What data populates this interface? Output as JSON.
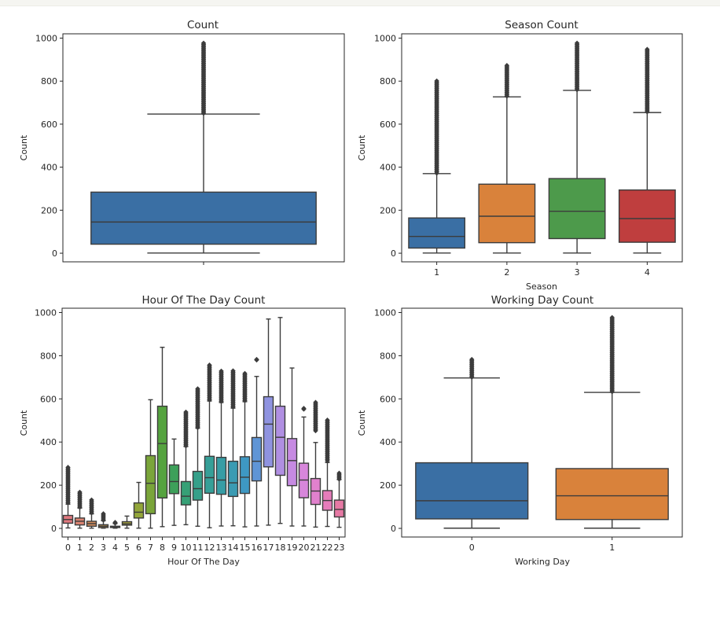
{
  "figure": {
    "background": "#ffffff"
  },
  "chart_data": [
    {
      "type": "boxplot",
      "title": "Count",
      "xlabel": "",
      "ylabel": "Count",
      "ylim": [
        -40,
        1020
      ],
      "yticks": [
        0,
        200,
        400,
        600,
        800,
        1000
      ],
      "categories": [
        ""
      ],
      "boxes": [
        {
          "label": "",
          "lower_whisker": 1,
          "q1": 42,
          "median": 145,
          "q3": 284,
          "upper_whisker": 647,
          "outliers_from": 650,
          "outliers_to": 977,
          "color": "#3a6fa4"
        }
      ]
    },
    {
      "type": "boxplot",
      "title": "Season Count",
      "xlabel": "Season",
      "ylabel": "Count",
      "ylim": [
        -40,
        1020
      ],
      "yticks": [
        0,
        200,
        400,
        600,
        800,
        1000
      ],
      "categories": [
        "1",
        "2",
        "3",
        "4"
      ],
      "boxes": [
        {
          "label": "1",
          "lower_whisker": 1,
          "q1": 24,
          "median": 78,
          "q3": 164,
          "upper_whisker": 370,
          "outliers_from": 372,
          "outliers_to": 801,
          "color": "#3a6fa4"
        },
        {
          "label": "2",
          "lower_whisker": 1,
          "q1": 49,
          "median": 172,
          "q3": 321,
          "upper_whisker": 727,
          "outliers_from": 730,
          "outliers_to": 873,
          "color": "#d9823b"
        },
        {
          "label": "3",
          "lower_whisker": 1,
          "q1": 68,
          "median": 195,
          "q3": 347,
          "upper_whisker": 757,
          "outliers_from": 760,
          "outliers_to": 977,
          "color": "#4d9a4b"
        },
        {
          "label": "4",
          "lower_whisker": 1,
          "q1": 51,
          "median": 161,
          "q3": 294,
          "upper_whisker": 654,
          "outliers_from": 657,
          "outliers_to": 948,
          "color": "#bf3e3e"
        }
      ]
    },
    {
      "type": "boxplot",
      "title": "Hour Of The Day Count",
      "xlabel": "Hour Of The Day",
      "ylabel": "Count",
      "ylim": [
        -40,
        1020
      ],
      "yticks": [
        0,
        200,
        400,
        600,
        800,
        1000
      ],
      "categories": [
        "0",
        "1",
        "2",
        "3",
        "4",
        "5",
        "6",
        "7",
        "8",
        "9",
        "10",
        "11",
        "12",
        "13",
        "14",
        "15",
        "16",
        "17",
        "18",
        "19",
        "20",
        "21",
        "22",
        "23"
      ],
      "boxes": [
        {
          "label": "0",
          "lower_whisker": 2,
          "q1": 24,
          "median": 41,
          "q3": 60,
          "upper_whisker": 112,
          "outliers_from": 118,
          "outliers_to": 283,
          "color": "#e1797f"
        },
        {
          "label": "1",
          "lower_whisker": 1,
          "q1": 16,
          "median": 33,
          "q3": 48,
          "upper_whisker": 94,
          "outliers_from": 98,
          "outliers_to": 168,
          "color": "#dc8472"
        },
        {
          "label": "2",
          "lower_whisker": 1,
          "q1": 10,
          "median": 22,
          "q3": 33,
          "upper_whisker": 67,
          "outliers_from": 72,
          "outliers_to": 132,
          "color": "#d38d5c"
        },
        {
          "label": "3",
          "lower_whisker": 1,
          "q1": 4,
          "median": 10,
          "q3": 17,
          "upper_whisker": 35,
          "outliers_from": 38,
          "outliers_to": 68,
          "color": "#c89a4e"
        },
        {
          "label": "4",
          "lower_whisker": 1,
          "q1": 4,
          "median": 6,
          "q3": 10,
          "upper_whisker": 22,
          "outliers_from": 24,
          "outliers_to": 28,
          "color": "#bba043"
        },
        {
          "label": "5",
          "lower_whisker": 1,
          "q1": 15,
          "median": 21,
          "q3": 31,
          "upper_whisker": 57,
          "outliers_from": null,
          "outliers_to": null,
          "color": "#a7a33b"
        },
        {
          "label": "6",
          "lower_whisker": 1,
          "q1": 48,
          "median": 75,
          "q3": 118,
          "upper_whisker": 213,
          "outliers_from": null,
          "outliers_to": null,
          "color": "#93a63a"
        },
        {
          "label": "7",
          "lower_whisker": 1,
          "q1": 68,
          "median": 209,
          "q3": 337,
          "upper_whisker": 596,
          "outliers_from": null,
          "outliers_to": null,
          "color": "#7aa53a"
        },
        {
          "label": "8",
          "lower_whisker": 8,
          "q1": 141,
          "median": 393,
          "q3": 566,
          "upper_whisker": 839,
          "outliers_from": null,
          "outliers_to": null,
          "color": "#55a33f"
        },
        {
          "label": "9",
          "lower_whisker": 14,
          "q1": 161,
          "median": 217,
          "q3": 294,
          "upper_whisker": 414,
          "outliers_from": null,
          "outliers_to": null,
          "color": "#3da05a"
        },
        {
          "label": "10",
          "lower_whisker": 17,
          "q1": 109,
          "median": 149,
          "q3": 217,
          "upper_whisker": 379,
          "outliers_from": 382,
          "outliers_to": 539,
          "color": "#36a076"
        },
        {
          "label": "11",
          "lower_whisker": 10,
          "q1": 131,
          "median": 184,
          "q3": 264,
          "upper_whisker": 464,
          "outliers_from": 467,
          "outliers_to": 647,
          "color": "#35a08a"
        },
        {
          "label": "12",
          "lower_whisker": 3,
          "q1": 163,
          "median": 235,
          "q3": 334,
          "upper_whisker": 590,
          "outliers_from": 595,
          "outliers_to": 757,
          "color": "#369f98"
        },
        {
          "label": "13",
          "lower_whisker": 11,
          "q1": 158,
          "median": 224,
          "q3": 329,
          "upper_whisker": 583,
          "outliers_from": 588,
          "outliers_to": 729,
          "color": "#379da5"
        },
        {
          "label": "14",
          "lower_whisker": 12,
          "q1": 148,
          "median": 211,
          "q3": 311,
          "upper_whisker": 557,
          "outliers_from": 562,
          "outliers_to": 730,
          "color": "#3a9bb3"
        },
        {
          "label": "15",
          "lower_whisker": 7,
          "q1": 162,
          "median": 237,
          "q3": 332,
          "upper_whisker": 587,
          "outliers_from": 592,
          "outliers_to": 718,
          "color": "#3e98c3"
        },
        {
          "label": "16",
          "lower_whisker": 11,
          "q1": 220,
          "median": 311,
          "q3": 421,
          "upper_whisker": 704,
          "outliers_from": 780,
          "outliers_to": 783,
          "color": "#5f95d6"
        },
        {
          "label": "17",
          "lower_whisker": 15,
          "q1": 285,
          "median": 483,
          "q3": 610,
          "upper_whisker": 970,
          "outliers_from": null,
          "outliers_to": null,
          "color": "#8f93e0"
        },
        {
          "label": "18",
          "lower_whisker": 23,
          "q1": 246,
          "median": 422,
          "q3": 566,
          "upper_whisker": 977,
          "outliers_from": null,
          "outliers_to": null,
          "color": "#b08fe2"
        },
        {
          "label": "19",
          "lower_whisker": 11,
          "q1": 198,
          "median": 314,
          "q3": 416,
          "upper_whisker": 743,
          "outliers_from": null,
          "outliers_to": null,
          "color": "#c68ae2"
        },
        {
          "label": "20",
          "lower_whisker": 11,
          "q1": 142,
          "median": 224,
          "q3": 302,
          "upper_whisker": 516,
          "outliers_from": 552,
          "outliers_to": 556,
          "color": "#d786db"
        },
        {
          "label": "21",
          "lower_whisker": 6,
          "q1": 111,
          "median": 173,
          "q3": 231,
          "upper_whisker": 398,
          "outliers_from": 452,
          "outliers_to": 584,
          "color": "#e181cd"
        },
        {
          "label": "22",
          "lower_whisker": 9,
          "q1": 84,
          "median": 129,
          "q3": 175,
          "upper_whisker": 305,
          "outliers_from": 313,
          "outliers_to": 502,
          "color": "#e57cba"
        },
        {
          "label": "23",
          "lower_whisker": 5,
          "q1": 53,
          "median": 88,
          "q3": 131,
          "upper_whisker": 226,
          "outliers_from": 228,
          "outliers_to": 256,
          "color": "#e679a4"
        }
      ]
    },
    {
      "type": "boxplot",
      "title": "Working Day Count",
      "xlabel": "Working Day",
      "ylabel": "Count",
      "ylim": [
        -40,
        1020
      ],
      "yticks": [
        0,
        200,
        400,
        600,
        800,
        1000
      ],
      "categories": [
        "0",
        "1"
      ],
      "boxes": [
        {
          "label": "0",
          "lower_whisker": 1,
          "q1": 44,
          "median": 128,
          "q3": 304,
          "upper_whisker": 697,
          "outliers_from": 700,
          "outliers_to": 783,
          "color": "#3a6fa4"
        },
        {
          "label": "1",
          "lower_whisker": 1,
          "q1": 41,
          "median": 151,
          "q3": 277,
          "upper_whisker": 630,
          "outliers_from": 633,
          "outliers_to": 977,
          "color": "#d9823b"
        }
      ]
    }
  ]
}
